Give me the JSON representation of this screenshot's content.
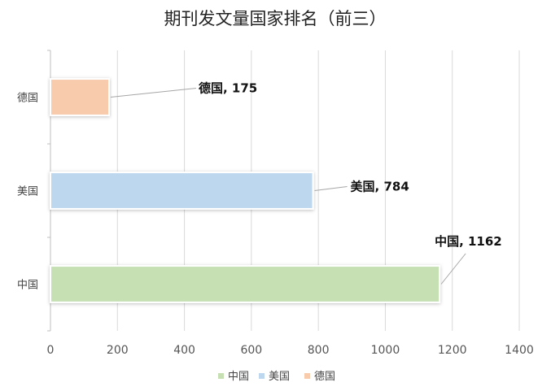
{
  "chart_data": {
    "type": "bar",
    "orientation": "horizontal",
    "title": "期刊发文量国家排名（前三）",
    "categories": [
      "中国",
      "美国",
      "德国"
    ],
    "values": [
      1162,
      784,
      175
    ],
    "xlim": [
      0,
      1400
    ],
    "x_ticks": [
      0,
      200,
      400,
      600,
      800,
      1000,
      1200,
      1400
    ],
    "data_labels": [
      "中国, 1162",
      "美国, 784",
      "德国, 175"
    ],
    "grid": "vertical",
    "legend": {
      "placement": "bottom",
      "items": [
        {
          "label": "中国",
          "color": "#c6e0b4"
        },
        {
          "label": "美国",
          "color": "#bdd7ee"
        },
        {
          "label": "德国",
          "color": "#f8cbad"
        }
      ]
    },
    "colors": {
      "中国": "#c6e0b4",
      "美国": "#bdd7ee",
      "德国": "#f8cbad"
    }
  }
}
